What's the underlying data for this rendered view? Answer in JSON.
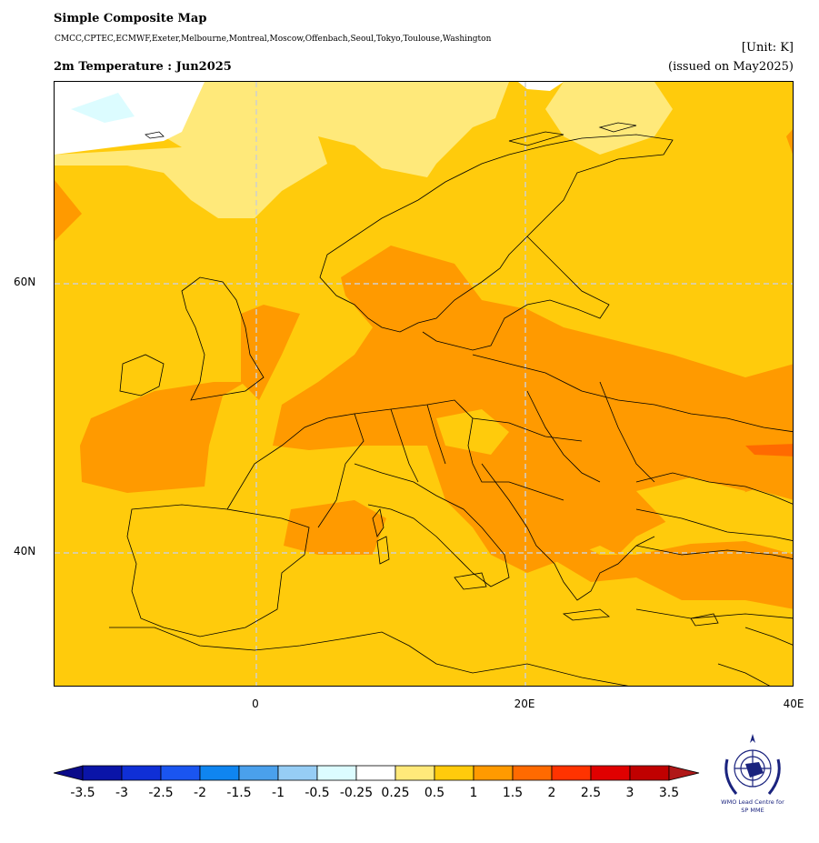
{
  "header": {
    "title": "Simple Composite Map",
    "models": "CMCC,CPTEC,ECMWF,Exeter,Melbourne,Montreal,Moscow,Offenbach,Seoul,Tokyo,Toulouse,Washington",
    "subtitle": "2m Temperature : Jun2025",
    "unit": "[Unit: K]",
    "issued": "(issued on May2025)"
  },
  "axes": {
    "lat_labels": [
      "60N",
      "40N"
    ],
    "lon_labels": [
      "0",
      "20E",
      "40E"
    ]
  },
  "colorbar": {
    "labels": [
      "-3.5",
      "-3",
      "-2.5",
      "-2",
      "-1.5",
      "-1",
      "-0.5",
      "-0.25",
      "0.25",
      "0.5",
      "1",
      "1.5",
      "2",
      "2.5",
      "3",
      "3.5"
    ],
    "colors": [
      "#0a14a8",
      "#0f2fd6",
      "#1a55f0",
      "#0f85f0",
      "#4aa0ec",
      "#96cdf5",
      "#dcfcff",
      "#ffffff",
      "#ffe97a",
      "#ffcb0c",
      "#ff9a00",
      "#ff6a00",
      "#ff3300",
      "#e00000",
      "#c00000"
    ],
    "low_extend": "#0a0a8a",
    "high_extend": "#b01818"
  },
  "map_colors": {
    "base": "#ffcb0c",
    "light": "#ffe97a",
    "warm": "#ff9a00",
    "cool": "#dcfcff",
    "white": "#ffffff"
  },
  "logo": {
    "text_line1": "WMO Lead Centre for",
    "text_line2": "SP MME"
  }
}
